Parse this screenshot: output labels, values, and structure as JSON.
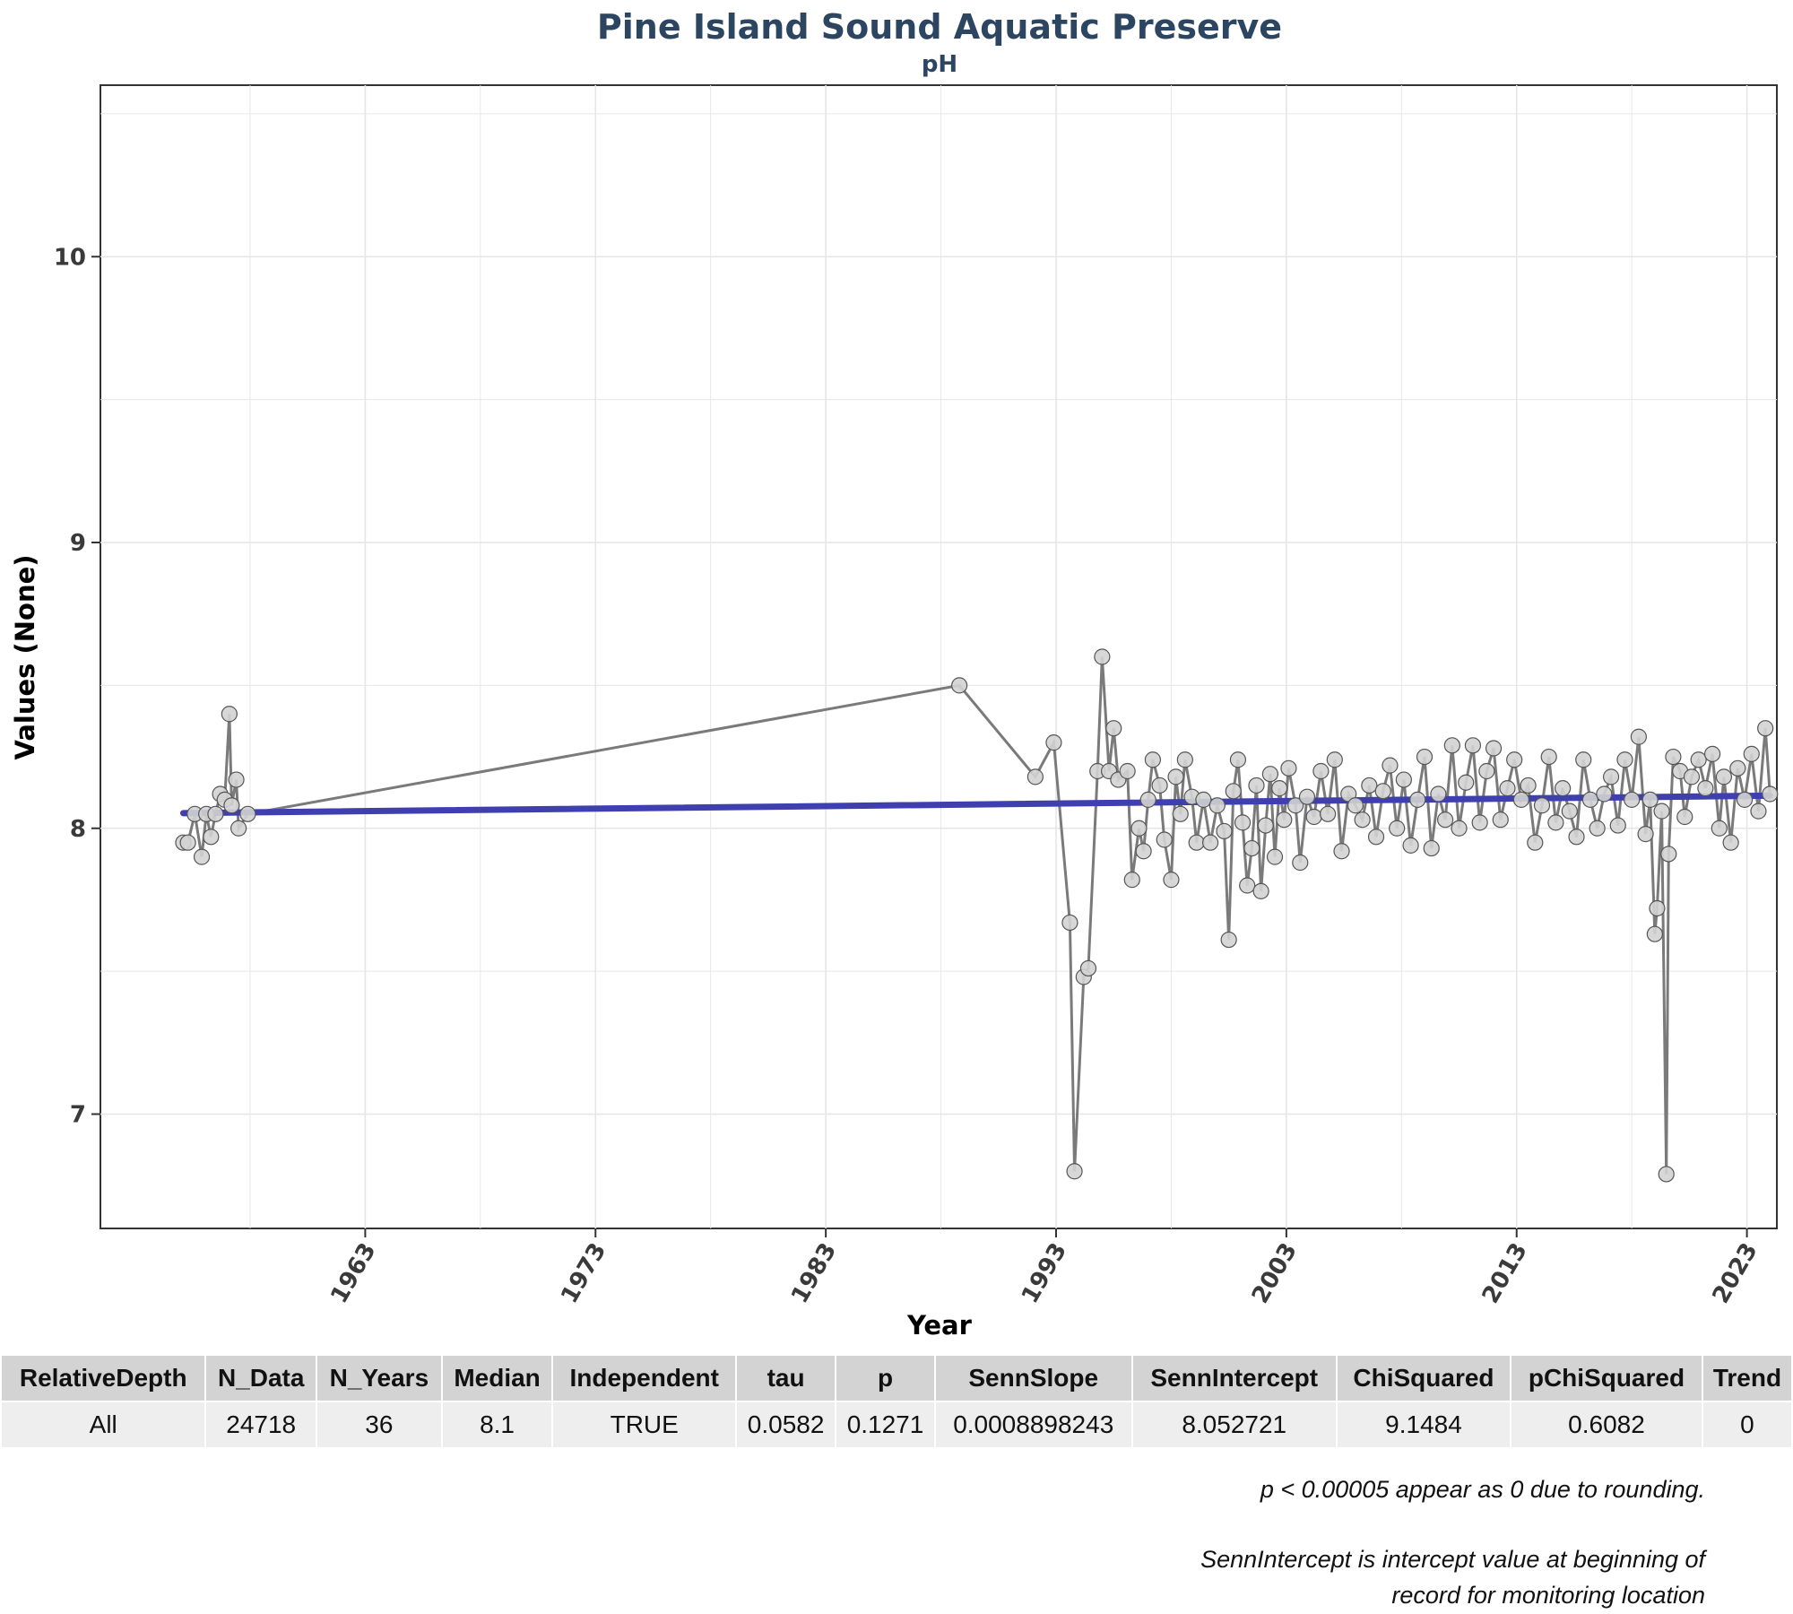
{
  "chart_data": {
    "type": "line",
    "title": "Pine Island Sound Aquatic Preserve",
    "subtitle": "pH",
    "xlabel": "Year",
    "ylabel": "Values (None)",
    "xlim": [
      1951.5,
      2024.3
    ],
    "ylim": [
      6.6,
      10.6
    ],
    "x_ticks": [
      1963,
      1973,
      1983,
      1993,
      2003,
      2013,
      2023
    ],
    "y_ticks": [
      7,
      8,
      9,
      10
    ],
    "grid": true,
    "series": [
      {
        "values": [
          [
            1955.1,
            7.95
          ],
          [
            1955.3,
            7.95
          ],
          [
            1955.6,
            8.05
          ],
          [
            1955.9,
            7.9
          ],
          [
            1956.1,
            8.05
          ],
          [
            1956.3,
            7.97
          ],
          [
            1956.5,
            8.05
          ],
          [
            1956.7,
            8.12
          ],
          [
            1956.9,
            8.1
          ],
          [
            1957.1,
            8.4
          ],
          [
            1957.2,
            8.08
          ],
          [
            1957.4,
            8.17
          ],
          [
            1957.5,
            8.0
          ],
          [
            1957.9,
            8.05
          ],
          [
            1988.8,
            8.5
          ],
          [
            1992.1,
            8.18
          ],
          [
            1992.9,
            8.3
          ],
          [
            1993.6,
            7.67
          ],
          [
            1993.8,
            6.8
          ],
          [
            1994.2,
            7.48
          ],
          [
            1994.4,
            7.51
          ],
          [
            1994.8,
            8.2
          ],
          [
            1995.0,
            8.6
          ],
          [
            1995.3,
            8.2
          ],
          [
            1995.5,
            8.35
          ],
          [
            1995.7,
            8.17
          ],
          [
            1996.1,
            8.2
          ],
          [
            1996.3,
            7.82
          ],
          [
            1996.6,
            8.0
          ],
          [
            1996.8,
            7.92
          ],
          [
            1997.0,
            8.1
          ],
          [
            1997.2,
            8.24
          ],
          [
            1997.5,
            8.15
          ],
          [
            1997.7,
            7.96
          ],
          [
            1998.0,
            7.82
          ],
          [
            1998.2,
            8.18
          ],
          [
            1998.4,
            8.05
          ],
          [
            1998.6,
            8.24
          ],
          [
            1998.9,
            8.11
          ],
          [
            1999.1,
            7.95
          ],
          [
            1999.4,
            8.1
          ],
          [
            1999.7,
            7.95
          ],
          [
            2000.0,
            8.08
          ],
          [
            2000.3,
            7.99
          ],
          [
            2000.5,
            7.61
          ],
          [
            2000.7,
            8.13
          ],
          [
            2000.9,
            8.24
          ],
          [
            2001.1,
            8.02
          ],
          [
            2001.3,
            7.8
          ],
          [
            2001.5,
            7.93
          ],
          [
            2001.7,
            8.15
          ],
          [
            2001.9,
            7.78
          ],
          [
            2002.1,
            8.01
          ],
          [
            2002.3,
            8.19
          ],
          [
            2002.5,
            7.9
          ],
          [
            2002.7,
            8.14
          ],
          [
            2002.9,
            8.03
          ],
          [
            2003.1,
            8.21
          ],
          [
            2003.4,
            8.08
          ],
          [
            2003.6,
            7.88
          ],
          [
            2003.9,
            8.11
          ],
          [
            2004.2,
            8.04
          ],
          [
            2004.5,
            8.2
          ],
          [
            2004.8,
            8.05
          ],
          [
            2005.1,
            8.24
          ],
          [
            2005.4,
            7.92
          ],
          [
            2005.7,
            8.12
          ],
          [
            2006.0,
            8.08
          ],
          [
            2006.3,
            8.03
          ],
          [
            2006.6,
            8.15
          ],
          [
            2006.9,
            7.97
          ],
          [
            2007.2,
            8.13
          ],
          [
            2007.5,
            8.22
          ],
          [
            2007.8,
            8.0
          ],
          [
            2008.1,
            8.17
          ],
          [
            2008.4,
            7.94
          ],
          [
            2008.7,
            8.1
          ],
          [
            2009.0,
            8.25
          ],
          [
            2009.3,
            7.93
          ],
          [
            2009.6,
            8.12
          ],
          [
            2009.9,
            8.03
          ],
          [
            2010.2,
            8.29
          ],
          [
            2010.5,
            8.0
          ],
          [
            2010.8,
            8.16
          ],
          [
            2011.1,
            8.29
          ],
          [
            2011.4,
            8.02
          ],
          [
            2011.7,
            8.2
          ],
          [
            2012.0,
            8.28
          ],
          [
            2012.3,
            8.03
          ],
          [
            2012.6,
            8.14
          ],
          [
            2012.9,
            8.24
          ],
          [
            2013.2,
            8.1
          ],
          [
            2013.5,
            8.15
          ],
          [
            2013.8,
            7.95
          ],
          [
            2014.1,
            8.08
          ],
          [
            2014.4,
            8.25
          ],
          [
            2014.7,
            8.02
          ],
          [
            2015.0,
            8.14
          ],
          [
            2015.3,
            8.06
          ],
          [
            2015.6,
            7.97
          ],
          [
            2015.9,
            8.24
          ],
          [
            2016.2,
            8.1
          ],
          [
            2016.5,
            8.0
          ],
          [
            2016.8,
            8.12
          ],
          [
            2017.1,
            8.18
          ],
          [
            2017.4,
            8.01
          ],
          [
            2017.7,
            8.24
          ],
          [
            2018.0,
            8.1
          ],
          [
            2018.3,
            8.32
          ],
          [
            2018.6,
            7.98
          ],
          [
            2018.8,
            8.1
          ],
          [
            2019.0,
            7.63
          ],
          [
            2019.1,
            7.72
          ],
          [
            2019.3,
            8.06
          ],
          [
            2019.5,
            6.79
          ],
          [
            2019.6,
            7.91
          ],
          [
            2019.8,
            8.25
          ],
          [
            2020.1,
            8.2
          ],
          [
            2020.3,
            8.04
          ],
          [
            2020.6,
            8.18
          ],
          [
            2020.9,
            8.24
          ],
          [
            2021.2,
            8.14
          ],
          [
            2021.5,
            8.26
          ],
          [
            2021.8,
            8.0
          ],
          [
            2022.0,
            8.18
          ],
          [
            2022.3,
            7.95
          ],
          [
            2022.6,
            8.21
          ],
          [
            2022.9,
            8.1
          ],
          [
            2023.2,
            8.26
          ],
          [
            2023.5,
            8.06
          ],
          [
            2023.8,
            8.35
          ],
          [
            2024.0,
            8.12
          ]
        ]
      },
      {
        "values": [
          [
            1955.1,
            8.053
          ],
          [
            2024.0,
            8.114
          ]
        ]
      }
    ]
  },
  "table": {
    "headers": [
      "RelativeDepth",
      "N_Data",
      "N_Years",
      "Median",
      "Independent",
      "tau",
      "p",
      "SennSlope",
      "SennIntercept",
      "ChiSquared",
      "pChiSquared",
      "Trend"
    ],
    "rows": [
      [
        "All",
        "24718",
        "36",
        "8.1",
        "TRUE",
        "0.0582",
        "0.1271",
        "0.0008898243",
        "8.052721",
        "9.1484",
        "0.6082",
        "0"
      ]
    ]
  },
  "notes": {
    "line1": "p < 0.00005 appear as 0 due to rounding.",
    "line2a": "SennIntercept is intercept value at beginning of",
    "line2b": "record for monitoring location"
  },
  "colors": {
    "series_line": "#7a7a7a",
    "point_fill": "#d3d3d3",
    "point_stroke": "#555555",
    "trend_line": "#3f3fb0",
    "title": "#2c4560"
  }
}
